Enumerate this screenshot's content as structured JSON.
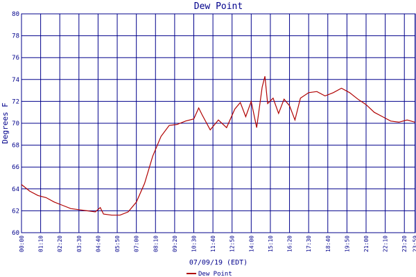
{
  "chart_data": {
    "type": "line",
    "title": "Dew Point",
    "ylabel": "Degrees F",
    "xlabel": "07/09/19 (EDT)",
    "ylim": [
      60,
      80
    ],
    "yticks": [
      60,
      62,
      64,
      66,
      68,
      70,
      72,
      74,
      76,
      78,
      80
    ],
    "xlim": [
      "00:00",
      "24:00"
    ],
    "xtick_labels": [
      "00:00",
      "01:10",
      "02:20",
      "03:30",
      "04:40",
      "05:50",
      "07:00",
      "08:10",
      "09:20",
      "10:30",
      "11:40",
      "12:50",
      "14:00",
      "15:10",
      "16:20",
      "17:30",
      "18:40",
      "19:50",
      "21:00",
      "22:10",
      "23:20",
      "23:59"
    ],
    "grid": true,
    "legend_position": "bottom",
    "series": [
      {
        "name": "Dew Point",
        "color": "#b00000",
        "x": [
          "00:00",
          "00:30",
          "01:00",
          "01:30",
          "02:00",
          "02:30",
          "03:00",
          "03:30",
          "04:00",
          "04:30",
          "04:48",
          "05:00",
          "05:30",
          "06:00",
          "06:30",
          "07:00",
          "07:30",
          "08:00",
          "08:30",
          "09:00",
          "09:30",
          "10:00",
          "10:30",
          "10:48",
          "11:00",
          "11:30",
          "12:00",
          "12:30",
          "13:00",
          "13:20",
          "13:40",
          "14:00",
          "14:20",
          "14:40",
          "14:50",
          "15:00",
          "15:20",
          "15:40",
          "16:00",
          "16:20",
          "16:40",
          "17:00",
          "17:30",
          "18:00",
          "18:30",
          "19:00",
          "19:30",
          "20:00",
          "20:30",
          "21:00",
          "21:30",
          "22:00",
          "22:30",
          "23:00",
          "23:30",
          "23:59"
        ],
        "y": [
          64.4,
          63.8,
          63.4,
          63.2,
          62.8,
          62.5,
          62.2,
          62.1,
          62.0,
          61.9,
          62.3,
          61.7,
          61.6,
          61.6,
          61.9,
          62.8,
          64.5,
          67.0,
          68.8,
          69.8,
          69.9,
          70.2,
          70.4,
          71.4,
          70.8,
          69.4,
          70.3,
          69.6,
          71.3,
          71.9,
          70.6,
          72.0,
          69.6,
          73.3,
          74.3,
          71.8,
          72.3,
          70.9,
          72.2,
          71.6,
          70.3,
          72.3,
          72.8,
          72.9,
          72.5,
          72.8,
          73.2,
          72.8,
          72.2,
          71.7,
          71.0,
          70.6,
          70.2,
          70.1,
          70.3,
          70.1
        ]
      }
    ]
  }
}
